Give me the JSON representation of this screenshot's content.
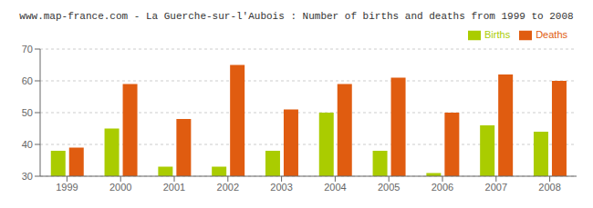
{
  "chart_data": {
    "type": "bar",
    "title": "www.map-france.com - La Guerche-sur-l'Aubois : Number of births and deaths from 1999 to 2008",
    "categories": [
      "1999",
      "2000",
      "2001",
      "2002",
      "2003",
      "2004",
      "2005",
      "2006",
      "2007",
      "2008"
    ],
    "series": [
      {
        "name": "Births",
        "color": "#aacc00",
        "values": [
          38,
          45,
          33,
          33,
          38,
          50,
          38,
          31,
          46,
          44
        ]
      },
      {
        "name": "Deaths",
        "color": "#e05c10",
        "values": [
          39,
          59,
          48,
          65,
          51,
          59,
          61,
          50,
          62,
          60
        ]
      }
    ],
    "ylim": [
      30,
      70
    ],
    "yticks": [
      30,
      40,
      50,
      60,
      70
    ],
    "grid": true,
    "legend": "upper right"
  }
}
